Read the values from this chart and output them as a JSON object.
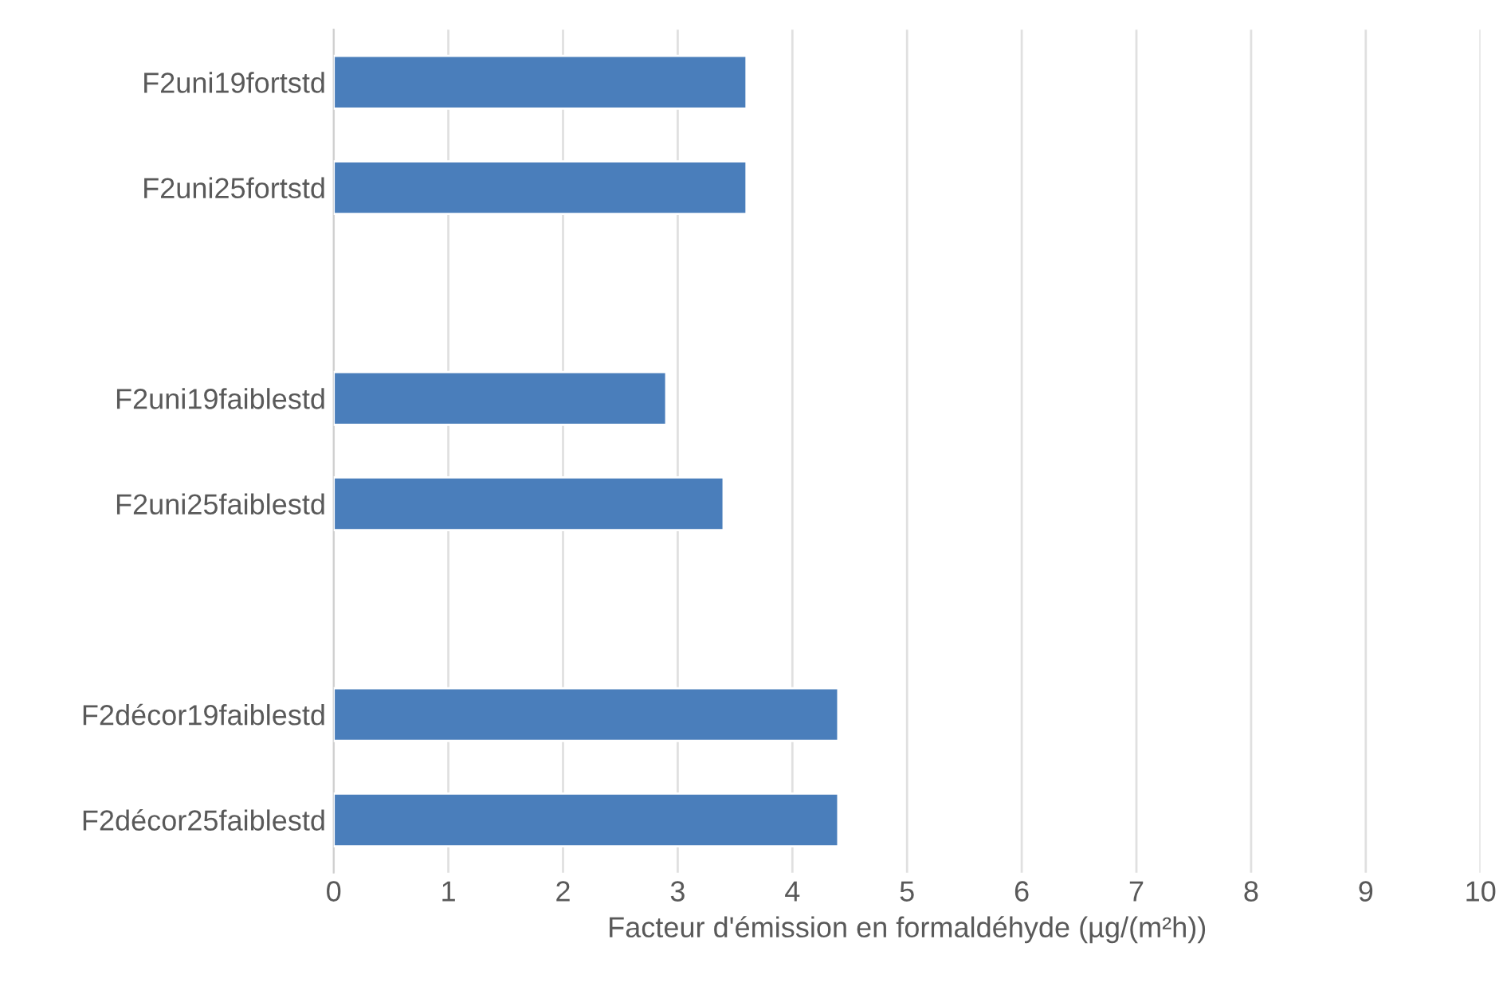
{
  "chart_data": {
    "type": "bar",
    "orientation": "horizontal",
    "categories": [
      "F2uni19fortstd",
      "F2uni25fortstd",
      null,
      "F2uni19faiblestd",
      "F2uni25faiblestd",
      null,
      "F2décor19faiblestd",
      "F2décor25faiblestd"
    ],
    "values": [
      3.6,
      3.6,
      null,
      2.9,
      3.4,
      null,
      4.4,
      4.4
    ],
    "color": "#4a7ebb",
    "xlabel": "Facteur d'émission en formaldéhyde (µg/(m²h))",
    "xlim": [
      0,
      10
    ],
    "xticks": [
      0,
      1,
      2,
      3,
      4,
      5,
      6,
      7,
      8,
      9,
      10
    ],
    "grid": "x",
    "legend": false
  }
}
